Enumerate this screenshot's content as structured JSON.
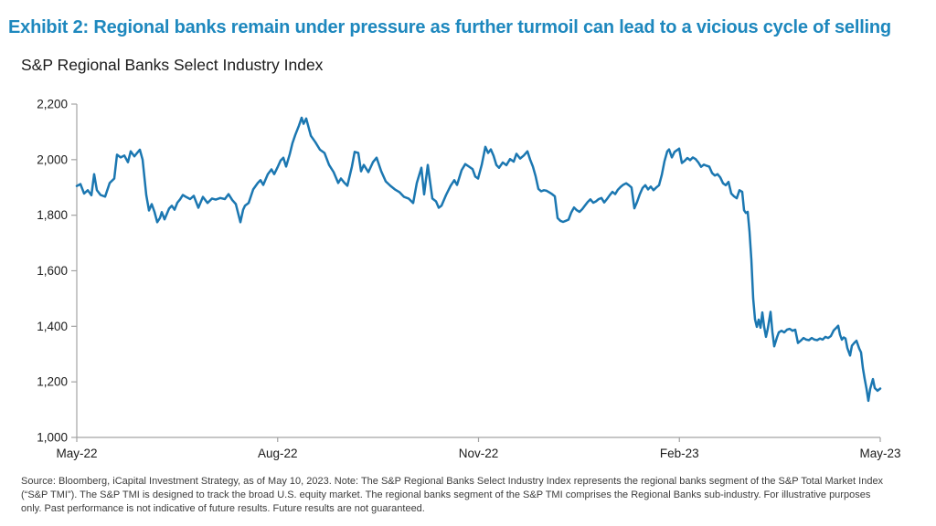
{
  "header": {
    "title": "Exhibit 2: Regional banks remain under pressure as further turmoil can lead to a vicious cycle of selling",
    "subtitle": "S&P Regional Banks Select Industry Index"
  },
  "colors": {
    "title": "#1E88BE",
    "line": "#1B77B1",
    "axis": "#A3A3A3",
    "tick_label": "#1A1A1A",
    "source_text": "#3C3C3C"
  },
  "source_note": {
    "lines": [
      "Source: Bloomberg, iCapital Investment Strategy, as of May 10, 2023. Note: The S&P Regional Banks Select Industry Index represents the regional banks segment of the S&P Total Market Index",
      "(“S&P TMI”). The S&P TMI is designed to track the broad U.S. equity market. The regional banks segment of the S&P TMI comprises the Regional Banks sub-industry. For illustrative purposes",
      "only. Past performance is not indicative of future results. Future results are not guaranteed."
    ]
  },
  "chart_data": {
    "type": "line",
    "title": "S&P Regional Banks Select Industry Index",
    "xlabel": "",
    "ylabel": "",
    "legend": "none",
    "grid": false,
    "x_axis": {
      "unit": "time (May-2022 to May-2023, t = fraction of span)",
      "ticks": [
        {
          "t": 0.0,
          "label": "May-22"
        },
        {
          "t": 0.25,
          "label": "Aug-22"
        },
        {
          "t": 0.5,
          "label": "Nov-22"
        },
        {
          "t": 0.75,
          "label": "Feb-23"
        },
        {
          "t": 1.0,
          "label": "May-23"
        }
      ]
    },
    "y_axis": {
      "range": [
        1000,
        2200
      ],
      "tick_step": 200,
      "ticks": [
        2200,
        2000,
        1800,
        1600,
        1400,
        1200,
        1000
      ]
    },
    "series": [
      {
        "name": "S&P Regional Banks Select Industry Index",
        "points": [
          [
            0.0,
            1905
          ],
          [
            0.0046,
            1912
          ],
          [
            0.0091,
            1878
          ],
          [
            0.0137,
            1890
          ],
          [
            0.0182,
            1872
          ],
          [
            0.0216,
            1948
          ],
          [
            0.025,
            1890
          ],
          [
            0.0296,
            1873
          ],
          [
            0.0353,
            1867
          ],
          [
            0.041,
            1916
          ],
          [
            0.0466,
            1932
          ],
          [
            0.0501,
            2018
          ],
          [
            0.0546,
            2008
          ],
          [
            0.0592,
            2015
          ],
          [
            0.0637,
            1991
          ],
          [
            0.0671,
            2030
          ],
          [
            0.0717,
            2012
          ],
          [
            0.0751,
            2024
          ],
          [
            0.0785,
            2036
          ],
          [
            0.0819,
            2000
          ],
          [
            0.0865,
            1873
          ],
          [
            0.0899,
            1817
          ],
          [
            0.0933,
            1840
          ],
          [
            0.0967,
            1812
          ],
          [
            0.1001,
            1775
          ],
          [
            0.1035,
            1790
          ],
          [
            0.1058,
            1811
          ],
          [
            0.1092,
            1785
          ],
          [
            0.1149,
            1824
          ],
          [
            0.1183,
            1834
          ],
          [
            0.1217,
            1820
          ],
          [
            0.1251,
            1845
          ],
          [
            0.1286,
            1857
          ],
          [
            0.132,
            1873
          ],
          [
            0.1365,
            1865
          ],
          [
            0.1411,
            1858
          ],
          [
            0.1456,
            1870
          ],
          [
            0.1513,
            1827
          ],
          [
            0.157,
            1866
          ],
          [
            0.1627,
            1844
          ],
          [
            0.1684,
            1860
          ],
          [
            0.1729,
            1856
          ],
          [
            0.1786,
            1862
          ],
          [
            0.1843,
            1858
          ],
          [
            0.1888,
            1876
          ],
          [
            0.1934,
            1855
          ],
          [
            0.198,
            1840
          ],
          [
            0.2014,
            1801
          ],
          [
            0.2036,
            1775
          ],
          [
            0.2071,
            1820
          ],
          [
            0.2093,
            1834
          ],
          [
            0.2139,
            1844
          ],
          [
            0.2196,
            1893
          ],
          [
            0.2253,
            1916
          ],
          [
            0.2287,
            1926
          ],
          [
            0.2321,
            1909
          ],
          [
            0.2378,
            1948
          ],
          [
            0.2423,
            1965
          ],
          [
            0.2457,
            1948
          ],
          [
            0.2503,
            1975
          ],
          [
            0.2537,
            1997
          ],
          [
            0.2571,
            2007
          ],
          [
            0.2605,
            1975
          ],
          [
            0.2651,
            2020
          ],
          [
            0.2685,
            2060
          ],
          [
            0.2719,
            2089
          ],
          [
            0.2765,
            2122
          ],
          [
            0.2799,
            2151
          ],
          [
            0.2822,
            2129
          ],
          [
            0.2856,
            2148
          ],
          [
            0.2913,
            2086
          ],
          [
            0.2969,
            2063
          ],
          [
            0.3026,
            2036
          ],
          [
            0.3083,
            2024
          ],
          [
            0.314,
            1981
          ],
          [
            0.3197,
            1955
          ],
          [
            0.3254,
            1916
          ],
          [
            0.3288,
            1932
          ],
          [
            0.3333,
            1916
          ],
          [
            0.3367,
            1906
          ],
          [
            0.3424,
            1975
          ],
          [
            0.3459,
            2028
          ],
          [
            0.3504,
            2024
          ],
          [
            0.3538,
            1958
          ],
          [
            0.3572,
            1981
          ],
          [
            0.3629,
            1955
          ],
          [
            0.3686,
            1991
          ],
          [
            0.3732,
            2007
          ],
          [
            0.3789,
            1958
          ],
          [
            0.3845,
            1922
          ],
          [
            0.3902,
            1906
          ],
          [
            0.3959,
            1893
          ],
          [
            0.4016,
            1883
          ],
          [
            0.4073,
            1866
          ],
          [
            0.413,
            1860
          ],
          [
            0.4187,
            1844
          ],
          [
            0.4232,
            1916
          ],
          [
            0.4289,
            1971
          ],
          [
            0.4323,
            1875
          ],
          [
            0.4369,
            1981
          ],
          [
            0.4426,
            1860
          ],
          [
            0.4471,
            1850
          ],
          [
            0.4505,
            1827
          ],
          [
            0.4539,
            1834
          ],
          [
            0.4596,
            1873
          ],
          [
            0.4653,
            1906
          ],
          [
            0.4699,
            1926
          ],
          [
            0.4733,
            1909
          ],
          [
            0.479,
            1962
          ],
          [
            0.4835,
            1984
          ],
          [
            0.4881,
            1975
          ],
          [
            0.4926,
            1966
          ],
          [
            0.496,
            1939
          ],
          [
            0.4994,
            1932
          ],
          [
            0.504,
            1981
          ],
          [
            0.5085,
            2046
          ],
          [
            0.5119,
            2024
          ],
          [
            0.5154,
            2037
          ],
          [
            0.5188,
            2014
          ],
          [
            0.5222,
            1981
          ],
          [
            0.5256,
            1971
          ],
          [
            0.5301,
            1990
          ],
          [
            0.5347,
            1980
          ],
          [
            0.5393,
            2002
          ],
          [
            0.5438,
            1993
          ],
          [
            0.5472,
            2021
          ],
          [
            0.5518,
            2004
          ],
          [
            0.5563,
            2015
          ],
          [
            0.5609,
            2030
          ],
          [
            0.5643,
            2000
          ],
          [
            0.5677,
            1975
          ],
          [
            0.5711,
            1940
          ],
          [
            0.5745,
            1895
          ],
          [
            0.5779,
            1886
          ],
          [
            0.5814,
            1890
          ],
          [
            0.5848,
            1888
          ],
          [
            0.5882,
            1882
          ],
          [
            0.5916,
            1876
          ],
          [
            0.595,
            1868
          ],
          [
            0.5984,
            1790
          ],
          [
            0.6018,
            1780
          ],
          [
            0.6052,
            1776
          ],
          [
            0.6086,
            1780
          ],
          [
            0.6121,
            1784
          ],
          [
            0.6155,
            1810
          ],
          [
            0.6189,
            1828
          ],
          [
            0.6223,
            1818
          ],
          [
            0.6257,
            1812
          ],
          [
            0.6291,
            1822
          ],
          [
            0.6325,
            1835
          ],
          [
            0.6359,
            1848
          ],
          [
            0.6393,
            1857
          ],
          [
            0.6428,
            1845
          ],
          [
            0.6462,
            1850
          ],
          [
            0.6496,
            1858
          ],
          [
            0.653,
            1862
          ],
          [
            0.6564,
            1846
          ],
          [
            0.6598,
            1858
          ],
          [
            0.6632,
            1872
          ],
          [
            0.6667,
            1884
          ],
          [
            0.6701,
            1876
          ],
          [
            0.6735,
            1892
          ],
          [
            0.6769,
            1902
          ],
          [
            0.6803,
            1910
          ],
          [
            0.6837,
            1915
          ],
          [
            0.6871,
            1908
          ],
          [
            0.6905,
            1900
          ],
          [
            0.694,
            1825
          ],
          [
            0.6974,
            1848
          ],
          [
            0.7008,
            1876
          ],
          [
            0.7042,
            1898
          ],
          [
            0.7076,
            1908
          ],
          [
            0.711,
            1893
          ],
          [
            0.7144,
            1903
          ],
          [
            0.7178,
            1890
          ],
          [
            0.7213,
            1900
          ],
          [
            0.7247,
            1908
          ],
          [
            0.7281,
            1945
          ],
          [
            0.7315,
            1995
          ],
          [
            0.7349,
            2030
          ],
          [
            0.7372,
            2037
          ],
          [
            0.7406,
            2008
          ],
          [
            0.744,
            2028
          ],
          [
            0.7474,
            2035
          ],
          [
            0.7497,
            2040
          ],
          [
            0.7531,
            1988
          ],
          [
            0.7565,
            1996
          ],
          [
            0.7599,
            2006
          ],
          [
            0.7634,
            1998
          ],
          [
            0.7668,
            2008
          ],
          [
            0.7702,
            2002
          ],
          [
            0.7736,
            1990
          ],
          [
            0.777,
            1974
          ],
          [
            0.7804,
            1982
          ],
          [
            0.7838,
            1978
          ],
          [
            0.7872,
            1975
          ],
          [
            0.7907,
            1952
          ],
          [
            0.7941,
            1943
          ],
          [
            0.7975,
            1948
          ],
          [
            0.8009,
            1936
          ],
          [
            0.8043,
            1915
          ],
          [
            0.8077,
            1908
          ],
          [
            0.8111,
            1920
          ],
          [
            0.8146,
            1878
          ],
          [
            0.818,
            1868
          ],
          [
            0.8214,
            1861
          ],
          [
            0.8248,
            1890
          ],
          [
            0.8282,
            1884
          ],
          [
            0.8305,
            1818
          ],
          [
            0.8328,
            1808
          ],
          [
            0.835,
            1812
          ],
          [
            0.8373,
            1740
          ],
          [
            0.8396,
            1640
          ],
          [
            0.8419,
            1500
          ],
          [
            0.8441,
            1425
          ],
          [
            0.8464,
            1398
          ],
          [
            0.8487,
            1424
          ],
          [
            0.851,
            1395
          ],
          [
            0.8532,
            1450
          ],
          [
            0.8555,
            1398
          ],
          [
            0.8578,
            1362
          ],
          [
            0.8601,
            1392
          ],
          [
            0.8635,
            1452
          ],
          [
            0.8658,
            1380
          ],
          [
            0.868,
            1328
          ],
          [
            0.8714,
            1360
          ],
          [
            0.8737,
            1378
          ],
          [
            0.8771,
            1384
          ],
          [
            0.8805,
            1378
          ],
          [
            0.884,
            1388
          ],
          [
            0.8874,
            1391
          ],
          [
            0.8908,
            1384
          ],
          [
            0.8942,
            1388
          ],
          [
            0.8976,
            1340
          ],
          [
            0.901,
            1348
          ],
          [
            0.9044,
            1358
          ],
          [
            0.9078,
            1352
          ],
          [
            0.9113,
            1350
          ],
          [
            0.9147,
            1358
          ],
          [
            0.9181,
            1352
          ],
          [
            0.9215,
            1350
          ],
          [
            0.9249,
            1356
          ],
          [
            0.9283,
            1352
          ],
          [
            0.9317,
            1362
          ],
          [
            0.9351,
            1358
          ],
          [
            0.9386,
            1365
          ],
          [
            0.942,
            1385
          ],
          [
            0.9454,
            1395
          ],
          [
            0.9477,
            1402
          ],
          [
            0.9499,
            1370
          ],
          [
            0.9522,
            1352
          ],
          [
            0.9545,
            1360
          ],
          [
            0.9568,
            1356
          ],
          [
            0.959,
            1322
          ],
          [
            0.9625,
            1295
          ],
          [
            0.9647,
            1330
          ],
          [
            0.9681,
            1342
          ],
          [
            0.9704,
            1348
          ],
          [
            0.9738,
            1320
          ],
          [
            0.9761,
            1306
          ],
          [
            0.9784,
            1250
          ],
          [
            0.9806,
            1212
          ],
          [
            0.9829,
            1175
          ],
          [
            0.9852,
            1132
          ],
          [
            0.9875,
            1175
          ],
          [
            0.9909,
            1210
          ],
          [
            0.9932,
            1178
          ],
          [
            0.9966,
            1168
          ],
          [
            1.0,
            1176
          ]
        ]
      }
    ]
  }
}
